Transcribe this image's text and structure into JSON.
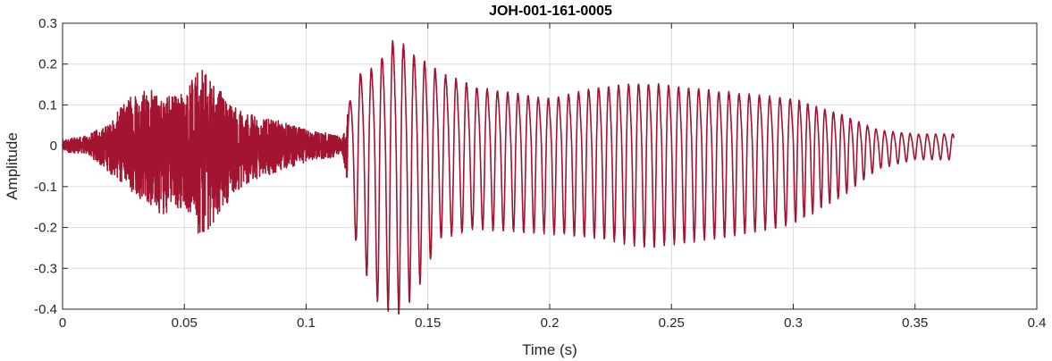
{
  "chart_data": {
    "type": "line",
    "title": "JOH-001-161-0005",
    "xlabel": "Time (s)",
    "ylabel": "Amplitude",
    "xlim": [
      0,
      0.4
    ],
    "ylim": [
      -0.4,
      0.3
    ],
    "grid": true,
    "series_color": "#A2142F",
    "xticks": [
      0,
      0.05,
      0.1,
      0.15,
      0.2,
      0.25,
      0.3,
      0.35,
      0.4
    ],
    "xtick_labels": [
      "0",
      "0.05",
      "0.1",
      "0.15",
      "0.2",
      "0.25",
      "0.3",
      "0.35",
      "0.4"
    ],
    "yticks": [
      -0.4,
      -0.3,
      -0.2,
      -0.1,
      0,
      0.1,
      0.2,
      0.3
    ],
    "ytick_labels": [
      "-0.4",
      "-0.3",
      "-0.2",
      "-0.1",
      "0",
      "0.1",
      "0.2",
      "0.3"
    ],
    "series": [
      {
        "x_start": 0,
        "x_end": 0.366,
        "envelope": [
          {
            "t": 0.0,
            "max": 0.015,
            "min": -0.015
          },
          {
            "t": 0.01,
            "max": 0.025,
            "min": -0.02
          },
          {
            "t": 0.02,
            "max": 0.06,
            "min": -0.07
          },
          {
            "t": 0.03,
            "max": 0.15,
            "min": -0.12
          },
          {
            "t": 0.04,
            "max": 0.13,
            "min": -0.17
          },
          {
            "t": 0.05,
            "max": 0.14,
            "min": -0.15
          },
          {
            "t": 0.057,
            "max": 0.19,
            "min": -0.23
          },
          {
            "t": 0.07,
            "max": 0.1,
            "min": -0.12
          },
          {
            "t": 0.08,
            "max": 0.07,
            "min": -0.08
          },
          {
            "t": 0.09,
            "max": 0.06,
            "min": -0.06
          },
          {
            "t": 0.1,
            "max": 0.04,
            "min": -0.04
          },
          {
            "t": 0.11,
            "max": 0.03,
            "min": -0.03
          },
          {
            "t": 0.115,
            "max": 0.02,
            "min": -0.02
          },
          {
            "t": 0.12,
            "max": 0.18,
            "min": -0.2
          },
          {
            "t": 0.128,
            "max": 0.2,
            "min": -0.33
          },
          {
            "t": 0.137,
            "max": 0.28,
            "min": -0.37
          },
          {
            "t": 0.145,
            "max": 0.23,
            "min": -0.32
          },
          {
            "t": 0.155,
            "max": 0.19,
            "min": -0.2
          },
          {
            "t": 0.17,
            "max": 0.15,
            "min": -0.18
          },
          {
            "t": 0.2,
            "max": 0.12,
            "min": -0.19
          },
          {
            "t": 0.22,
            "max": 0.15,
            "min": -0.2
          },
          {
            "t": 0.24,
            "max": 0.16,
            "min": -0.22
          },
          {
            "t": 0.27,
            "max": 0.14,
            "min": -0.2
          },
          {
            "t": 0.3,
            "max": 0.12,
            "min": -0.17
          },
          {
            "t": 0.32,
            "max": 0.08,
            "min": -0.11
          },
          {
            "t": 0.335,
            "max": 0.04,
            "min": -0.05
          },
          {
            "t": 0.35,
            "max": 0.03,
            "min": -0.03
          },
          {
            "t": 0.366,
            "max": 0.03,
            "min": -0.03
          }
        ]
      }
    ]
  }
}
